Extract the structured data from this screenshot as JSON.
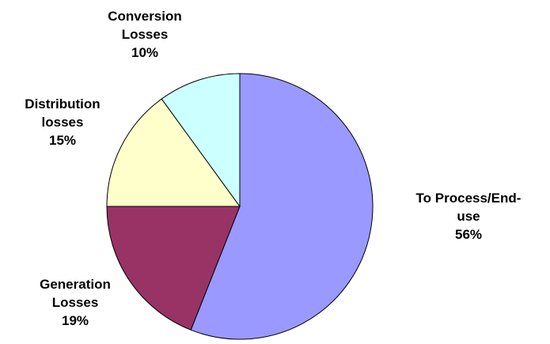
{
  "chart_data": {
    "type": "pie",
    "start_angle_deg": 0,
    "direction": "clockwise",
    "slices": [
      {
        "name_lines": [
          "To Process/End-",
          "use"
        ],
        "pct_label": "56%",
        "value": 56,
        "color": "#9999FF"
      },
      {
        "name_lines": [
          "Generation",
          "Losses"
        ],
        "pct_label": "19%",
        "value": 19,
        "color": "#993366"
      },
      {
        "name_lines": [
          "Distribution",
          "losses"
        ],
        "pct_label": "15%",
        "value": 15,
        "color": "#FFFFCC"
      },
      {
        "name_lines": [
          "Conversion",
          "Losses"
        ],
        "pct_label": "10%",
        "value": 10,
        "color": "#CCFFFF"
      }
    ]
  }
}
